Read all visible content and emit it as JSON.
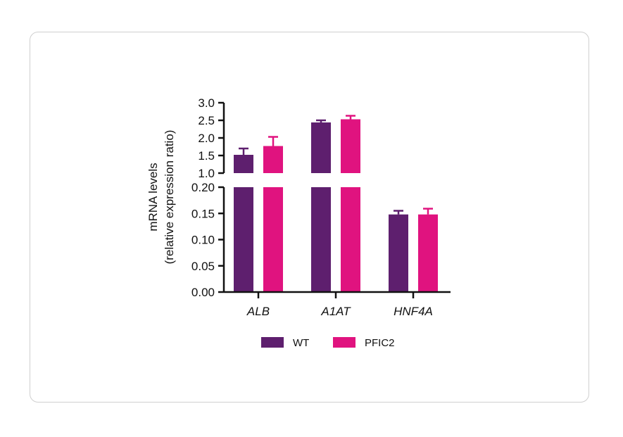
{
  "colors": {
    "wt": "#5e1f6e",
    "pfic2": "#e0137f",
    "axis": "#111111"
  },
  "chart_data": {
    "type": "bar",
    "broken_y_axis": true,
    "ylabel": [
      "mRNA levels",
      "(relative expression ratio)"
    ],
    "upper_segment": {
      "ylim": [
        1.0,
        3.0
      ],
      "ticks": [
        "3.0",
        "2.5",
        "2.0",
        "1.5",
        "1.0"
      ]
    },
    "lower_segment": {
      "ylim": [
        0.0,
        0.2
      ],
      "ticks": [
        "0.20",
        "0.15",
        "0.10",
        "0.05",
        "0.00"
      ]
    },
    "categories": [
      "ALB",
      "A1AT",
      "HNF4A"
    ],
    "series": [
      {
        "name": "WT",
        "values": [
          1.52,
          2.44,
          0.148
        ],
        "error": [
          0.18,
          0.06,
          0.007
        ]
      },
      {
        "name": "PFIC2",
        "values": [
          1.77,
          2.53,
          0.148
        ],
        "error": [
          0.26,
          0.1,
          0.011
        ]
      }
    ],
    "legend": [
      "WT",
      "PFIC2"
    ],
    "legend_position": "bottom"
  }
}
